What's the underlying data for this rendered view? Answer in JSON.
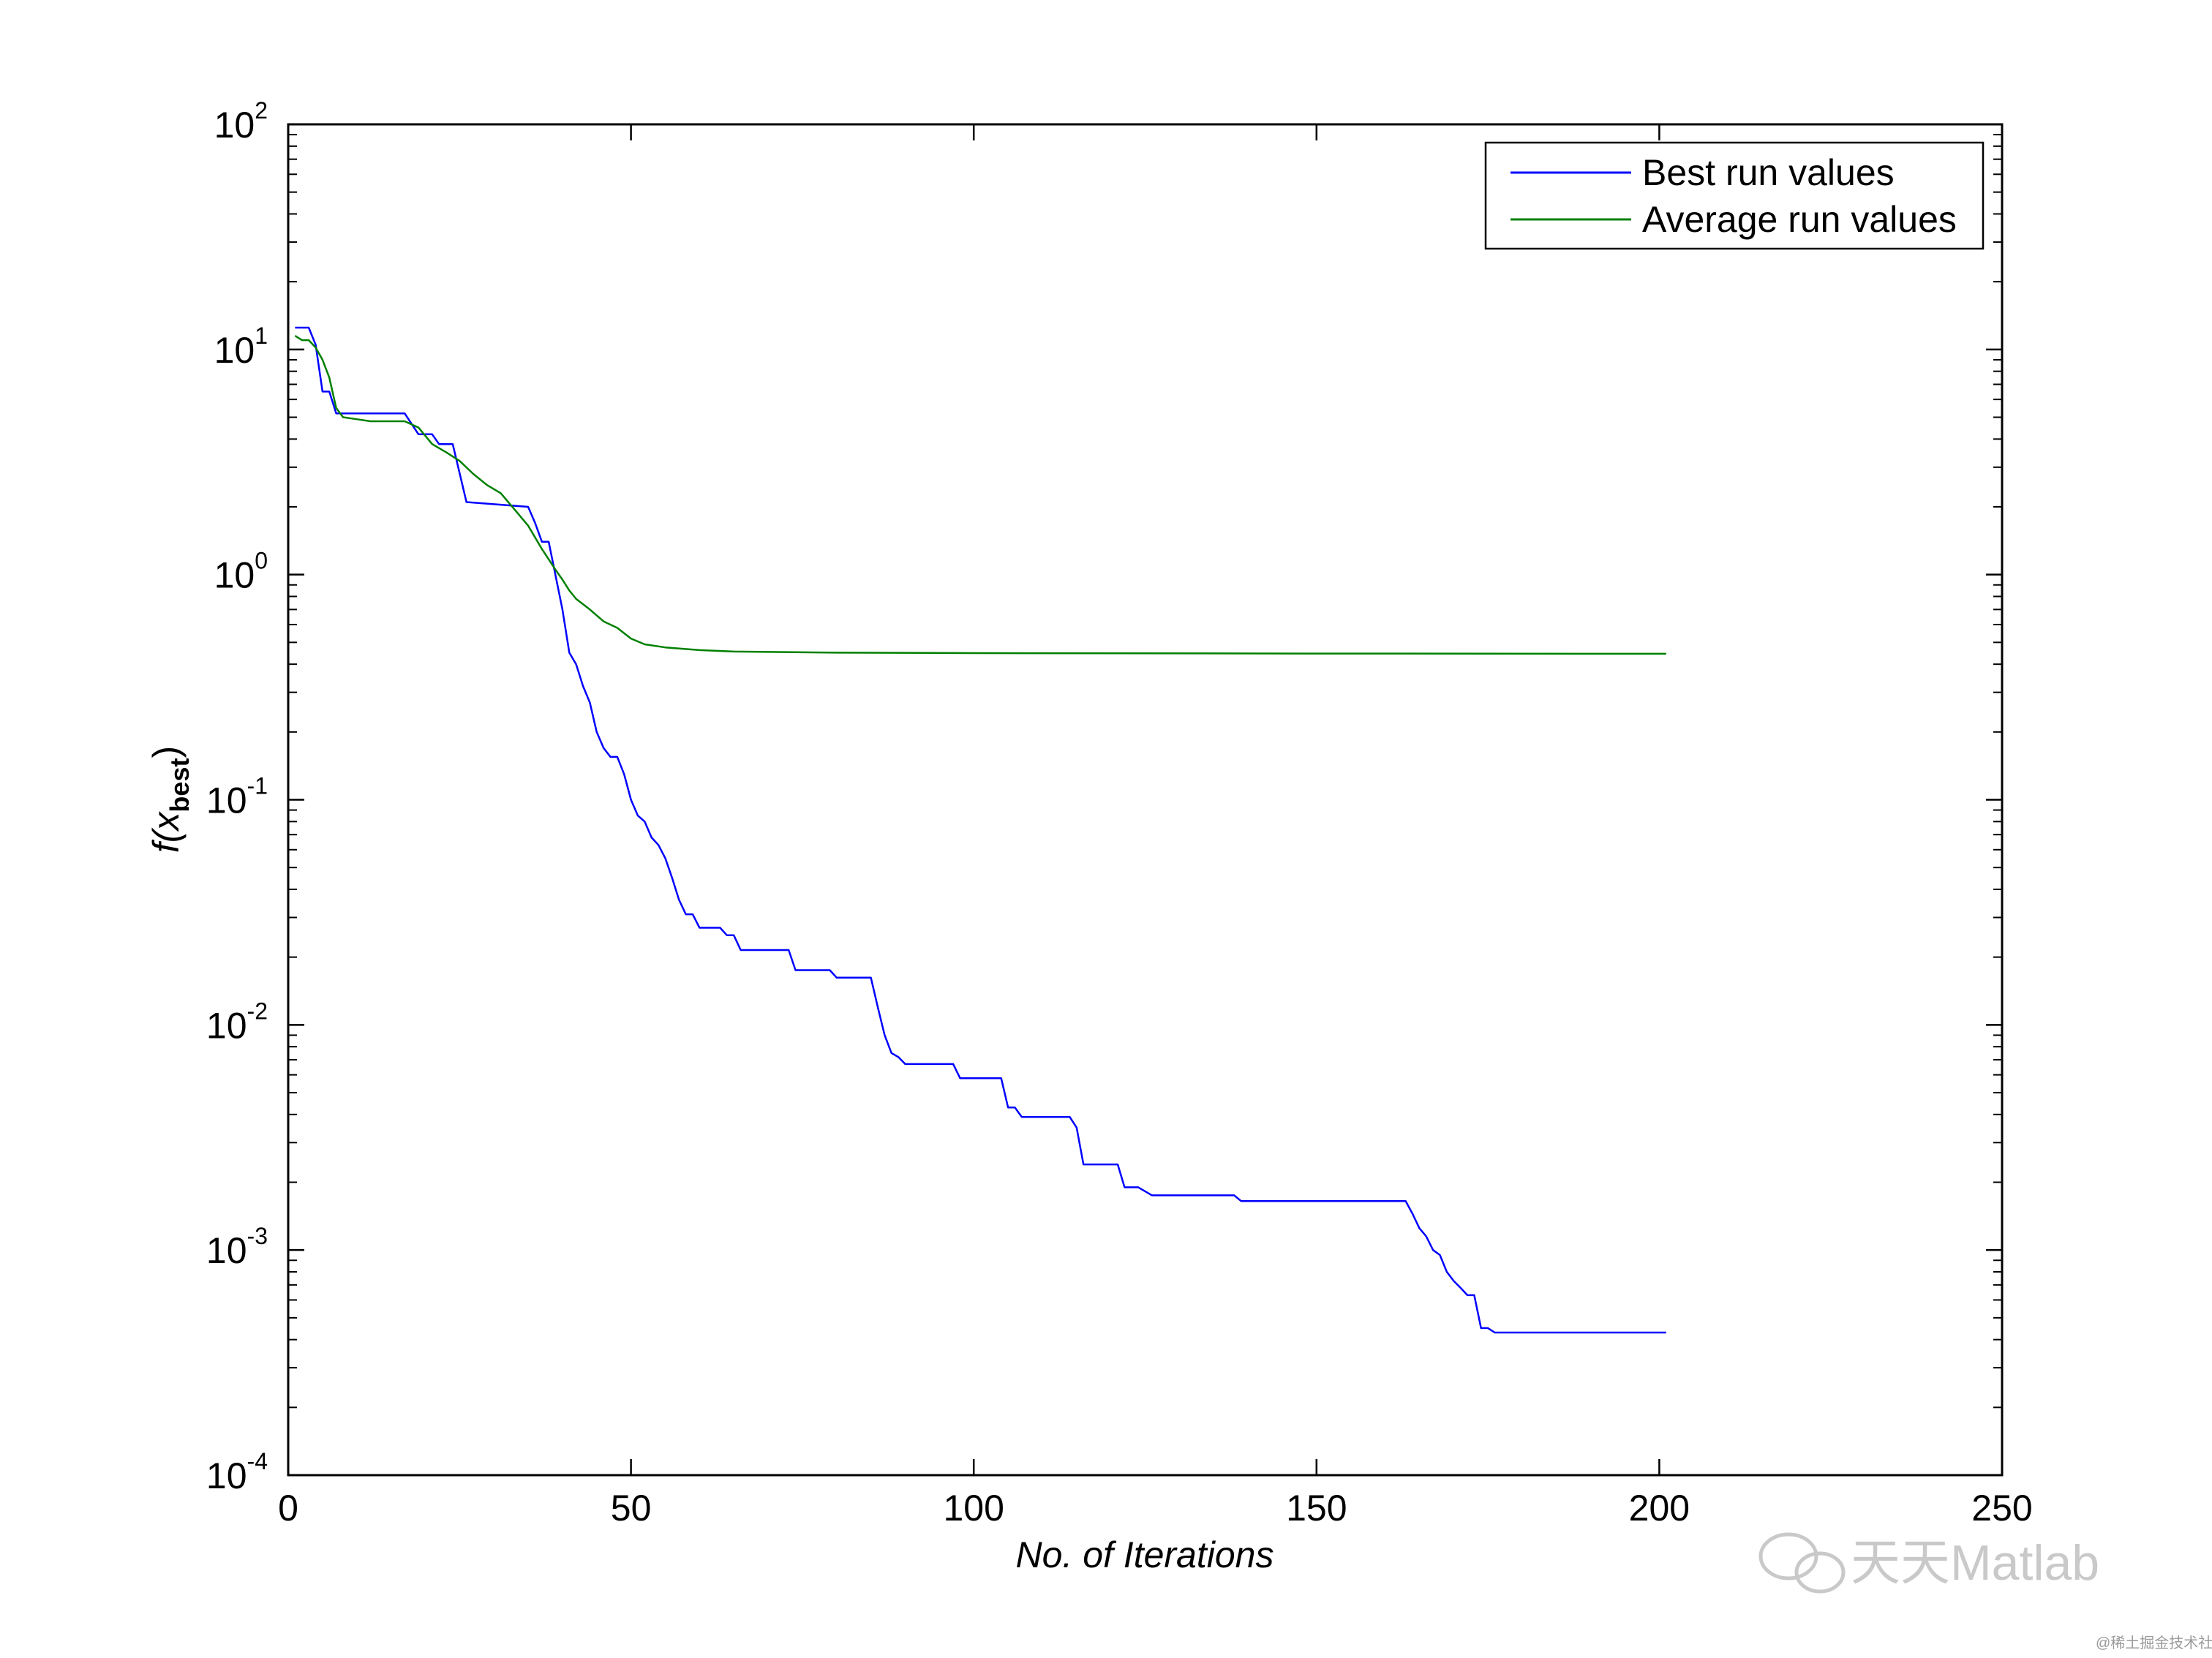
{
  "chart_data": {
    "type": "line",
    "title": "",
    "xlabel": "No. of Iterations",
    "ylabel": {
      "main": "f(x",
      "sub": "best",
      "close": ")"
    },
    "xlim": [
      0,
      250
    ],
    "ylim": [
      0.0001,
      100
    ],
    "yscale": "log",
    "x_ticks": [
      "0",
      "50",
      "100",
      "150",
      "200",
      "250"
    ],
    "y_ticks": [
      {
        "base": "10",
        "exp": "2"
      },
      {
        "base": "10",
        "exp": "1"
      },
      {
        "base": "10",
        "exp": "0"
      },
      {
        "base": "10",
        "exp": "-1"
      },
      {
        "base": "10",
        "exp": "-2"
      },
      {
        "base": "10",
        "exp": "-3"
      },
      {
        "base": "10",
        "exp": "-4"
      }
    ],
    "legend_position": "top-right",
    "series": [
      {
        "name": "Best run values",
        "color": "#0000ff",
        "points": [
          [
            1,
            12.5
          ],
          [
            3,
            12.5
          ],
          [
            4,
            10.5
          ],
          [
            5,
            6.5
          ],
          [
            6,
            6.5
          ],
          [
            7,
            5.2
          ],
          [
            17,
            5.2
          ],
          [
            19,
            4.2
          ],
          [
            21,
            4.2
          ],
          [
            22,
            3.8
          ],
          [
            24,
            3.8
          ],
          [
            26,
            2.1
          ],
          [
            35,
            2.0
          ],
          [
            36,
            1.7
          ],
          [
            37,
            1.4
          ],
          [
            38,
            1.4
          ],
          [
            40,
            0.7
          ],
          [
            41,
            0.45
          ],
          [
            42,
            0.4
          ],
          [
            43,
            0.32
          ],
          [
            44,
            0.27
          ],
          [
            45,
            0.2
          ],
          [
            46,
            0.17
          ],
          [
            47,
            0.155
          ],
          [
            48,
            0.155
          ],
          [
            49,
            0.13
          ],
          [
            50,
            0.1
          ],
          [
            51,
            0.085
          ],
          [
            52,
            0.08
          ],
          [
            53,
            0.068
          ],
          [
            54,
            0.063
          ],
          [
            55,
            0.055
          ],
          [
            56,
            0.045
          ],
          [
            57,
            0.036
          ],
          [
            58,
            0.031
          ],
          [
            59,
            0.031
          ],
          [
            60,
            0.027
          ],
          [
            63,
            0.027
          ],
          [
            64,
            0.025
          ],
          [
            65,
            0.025
          ],
          [
            66,
            0.0215
          ],
          [
            73,
            0.0215
          ],
          [
            74,
            0.0175
          ],
          [
            79,
            0.0175
          ],
          [
            80,
            0.0162
          ],
          [
            85,
            0.0162
          ],
          [
            86,
            0.012
          ],
          [
            87,
            0.009
          ],
          [
            88,
            0.0075
          ],
          [
            89,
            0.0072
          ],
          [
            90,
            0.0067
          ],
          [
            97,
            0.0067
          ],
          [
            98,
            0.0058
          ],
          [
            104,
            0.0058
          ],
          [
            105,
            0.0043
          ],
          [
            106,
            0.0043
          ],
          [
            107,
            0.0039
          ],
          [
            114,
            0.0039
          ],
          [
            115,
            0.0035
          ],
          [
            116,
            0.0024
          ],
          [
            121,
            0.0024
          ],
          [
            122,
            0.0019
          ],
          [
            124,
            0.0019
          ],
          [
            126,
            0.00175
          ],
          [
            138,
            0.00175
          ],
          [
            139,
            0.00165
          ],
          [
            163,
            0.00165
          ],
          [
            164,
            0.00145
          ],
          [
            165,
            0.00125
          ],
          [
            166,
            0.00115
          ],
          [
            167,
            0.001
          ],
          [
            168,
            0.00095
          ],
          [
            169,
            0.0008
          ],
          [
            170,
            0.00073
          ],
          [
            171,
            0.00068
          ],
          [
            172,
            0.00063
          ],
          [
            173,
            0.00063
          ],
          [
            174,
            0.00045
          ],
          [
            175,
            0.00045
          ],
          [
            176,
            0.00043
          ],
          [
            201,
            0.00043
          ]
        ]
      },
      {
        "name": "Average run values",
        "color": "#008000",
        "points": [
          [
            1,
            11.5
          ],
          [
            2,
            11.0
          ],
          [
            3,
            11.0
          ],
          [
            4,
            10.2
          ],
          [
            5,
            9.0
          ],
          [
            6,
            7.5
          ],
          [
            7,
            5.5
          ],
          [
            8,
            5.0
          ],
          [
            10,
            4.9
          ],
          [
            12,
            4.8
          ],
          [
            17,
            4.8
          ],
          [
            19,
            4.5
          ],
          [
            21,
            3.8
          ],
          [
            23,
            3.5
          ],
          [
            25,
            3.2
          ],
          [
            27,
            2.8
          ],
          [
            29,
            2.5
          ],
          [
            31,
            2.3
          ],
          [
            33,
            1.95
          ],
          [
            35,
            1.65
          ],
          [
            37,
            1.3
          ],
          [
            39,
            1.05
          ],
          [
            40,
            0.95
          ],
          [
            41,
            0.85
          ],
          [
            42,
            0.78
          ],
          [
            44,
            0.7
          ],
          [
            46,
            0.62
          ],
          [
            48,
            0.58
          ],
          [
            50,
            0.52
          ],
          [
            52,
            0.49
          ],
          [
            55,
            0.475
          ],
          [
            60,
            0.462
          ],
          [
            65,
            0.455
          ],
          [
            80,
            0.45
          ],
          [
            100,
            0.448
          ],
          [
            150,
            0.446
          ],
          [
            201,
            0.445
          ]
        ]
      }
    ]
  },
  "watermark": {
    "text": "天天Matlab",
    "small_text": "@稀土掘金技术社区"
  }
}
